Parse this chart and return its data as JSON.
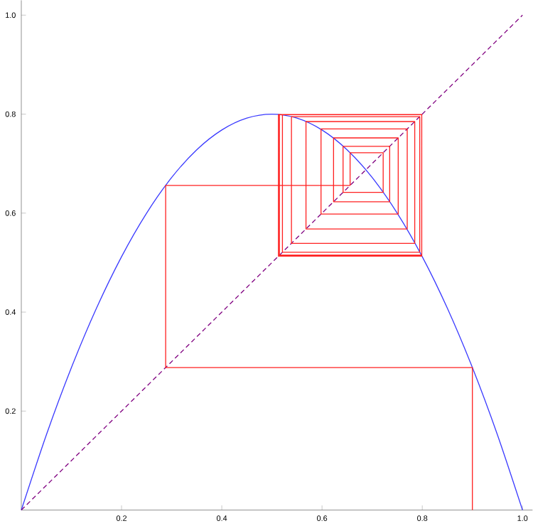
{
  "chart_data": {
    "type": "line",
    "xlim": [
      0,
      1.02
    ],
    "ylim": [
      0,
      1.03
    ],
    "xticks": [
      0.2,
      0.4,
      0.6,
      0.8,
      {
        "value": 1,
        "label": "1.0"
      }
    ],
    "yticks": [
      0.2,
      0.4,
      0.6,
      0.8,
      {
        "value": 1,
        "label": "1.0"
      }
    ],
    "grid": false,
    "marker": "none",
    "series": [
      {
        "color": "#3a3aff",
        "line_style": "solid",
        "x": [
          0,
          0.05,
          0.1,
          0.15,
          0.2,
          0.25,
          0.3,
          0.35,
          0.4,
          0.45,
          0.5,
          0.55,
          0.6,
          0.65,
          0.7,
          0.75,
          0.8,
          0.85,
          0.9,
          0.95,
          1.0
        ],
        "values": [
          0,
          0.152,
          0.288,
          0.408,
          0.512,
          0.6,
          0.672,
          0.728,
          0.768,
          0.792,
          0.8,
          0.792,
          0.768,
          0.728,
          0.672,
          0.6,
          0.512,
          0.408,
          0.288,
          0.152,
          0
        ]
      },
      {
        "color": "#800080",
        "line_style": "dashed",
        "x": [
          0,
          1
        ],
        "values": [
          0,
          1
        ]
      },
      {
        "color": "#ff2020",
        "line_style": "solid",
        "x": [
          0.9,
          0.9,
          0.288,
          0.288,
          0.656,
          0.656,
          0.722,
          0.722,
          0.642,
          0.642,
          0.735,
          0.735,
          0.623,
          0.623,
          0.752,
          0.752,
          0.598,
          0.598,
          0.77,
          0.77,
          0.568,
          0.568,
          0.785,
          0.785,
          0.539,
          0.539,
          0.795,
          0.795,
          0.521,
          0.521,
          0.799,
          0.799,
          0.515,
          0.515,
          0.799,
          0.799,
          0.513,
          0.513,
          0.799,
          0.799,
          0.513
        ],
        "values": [
          0,
          0.288,
          0.288,
          0.656,
          0.656,
          0.722,
          0.722,
          0.642,
          0.642,
          0.735,
          0.735,
          0.623,
          0.623,
          0.752,
          0.752,
          0.598,
          0.598,
          0.77,
          0.77,
          0.568,
          0.568,
          0.785,
          0.785,
          0.539,
          0.539,
          0.795,
          0.795,
          0.521,
          0.521,
          0.799,
          0.799,
          0.515,
          0.515,
          0.799,
          0.799,
          0.513,
          0.513,
          0.799,
          0.799,
          0.513,
          0.513
        ]
      }
    ]
  }
}
